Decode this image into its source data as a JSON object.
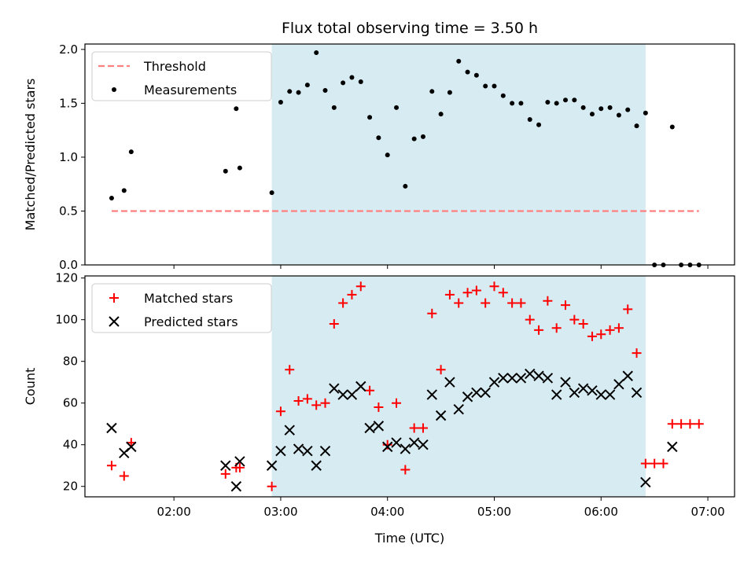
{
  "chart_data": {
    "title": "Flux total observing time = 3.50 h",
    "xlabel": "Time (UTC)",
    "x_unit": "hours UTC",
    "xlim": [
      "01:10",
      "07:15"
    ],
    "x_ticks": [
      "02:00",
      "03:00",
      "04:00",
      "05:00",
      "06:00",
      "07:00"
    ],
    "highlight_span": {
      "start": "02:55",
      "end": "06:25",
      "color": "#add8e6"
    },
    "panels": [
      {
        "type": "scatter",
        "ylabel": "Matched/Predicted stars",
        "ylim": [
          0,
          2.05
        ],
        "y_ticks": [
          "0.0",
          "0.5",
          "1.0",
          "1.5",
          "2.0"
        ],
        "legend_position": "upper-left",
        "series": [
          {
            "name": "Threshold",
            "type": "line",
            "style": "dashed",
            "color": "#ff7f7f",
            "x": [
              "01:25",
              "06:55"
            ],
            "y": [
              0.5,
              0.5
            ]
          },
          {
            "name": "Measurements",
            "type": "scatter",
            "marker": "dot",
            "color": "#000000",
            "x": [
              "01:25",
              "01:32",
              "01:36",
              "02:29",
              "02:35",
              "02:37",
              "02:55",
              "03:00",
              "03:05",
              "03:10",
              "03:15",
              "03:20",
              "03:25",
              "03:30",
              "03:35",
              "03:40",
              "03:45",
              "03:50",
              "03:55",
              "04:00",
              "04:05",
              "04:10",
              "04:15",
              "04:20",
              "04:25",
              "04:30",
              "04:35",
              "04:40",
              "04:45",
              "04:50",
              "04:55",
              "05:00",
              "05:05",
              "05:10",
              "05:15",
              "05:20",
              "05:25",
              "05:30",
              "05:35",
              "05:40",
              "05:45",
              "05:50",
              "05:55",
              "06:00",
              "06:05",
              "06:10",
              "06:15",
              "06:20",
              "06:25",
              "06:30",
              "06:35",
              "06:40",
              "06:45",
              "06:50",
              "06:55"
            ],
            "y": [
              0.62,
              0.69,
              1.05,
              0.87,
              1.45,
              0.9,
              0.67,
              1.51,
              1.61,
              1.6,
              1.67,
              1.97,
              1.62,
              1.46,
              1.69,
              1.74,
              1.7,
              1.37,
              1.18,
              1.02,
              1.46,
              0.73,
              1.17,
              1.19,
              1.61,
              1.4,
              1.6,
              1.89,
              1.79,
              1.76,
              1.66,
              1.66,
              1.57,
              1.5,
              1.5,
              1.35,
              1.3,
              1.51,
              1.5,
              1.53,
              1.53,
              1.46,
              1.4,
              1.45,
              1.46,
              1.39,
              1.44,
              1.29,
              1.41,
              0.0,
              0.0,
              1.28,
              0.0,
              0.0,
              0.0
            ]
          }
        ]
      },
      {
        "type": "scatter",
        "ylabel": "Count",
        "ylim": [
          15,
          121
        ],
        "y_ticks": [
          "20",
          "40",
          "60",
          "80",
          "100",
          "120"
        ],
        "legend_position": "upper-left",
        "series": [
          {
            "name": "Matched stars",
            "marker": "plus",
            "color": "#ff0000",
            "x": [
              "01:25",
              "01:32",
              "01:36",
              "02:29",
              "02:35",
              "02:37",
              "02:55",
              "03:00",
              "03:05",
              "03:10",
              "03:15",
              "03:20",
              "03:25",
              "03:30",
              "03:35",
              "03:40",
              "03:45",
              "03:50",
              "03:55",
              "04:00",
              "04:05",
              "04:10",
              "04:15",
              "04:20",
              "04:25",
              "04:30",
              "04:35",
              "04:40",
              "04:45",
              "04:50",
              "04:55",
              "05:00",
              "05:05",
              "05:10",
              "05:15",
              "05:20",
              "05:25",
              "05:30",
              "05:35",
              "05:40",
              "05:45",
              "05:50",
              "05:55",
              "06:00",
              "06:05",
              "06:10",
              "06:15",
              "06:20",
              "06:25",
              "06:30",
              "06:35",
              "06:40",
              "06:45",
              "06:50",
              "06:55"
            ],
            "y": [
              30,
              25,
              41,
              26,
              29,
              29,
              20,
              56,
              76,
              61,
              62,
              59,
              60,
              98,
              108,
              112,
              116,
              66,
              58,
              40,
              60,
              28,
              48,
              48,
              103,
              76,
              112,
              108,
              113,
              114,
              108,
              116,
              113,
              108,
              108,
              100,
              95,
              109,
              96,
              107,
              100,
              98,
              92,
              93,
              95,
              96,
              105,
              84,
              31,
              31,
              31,
              50,
              50,
              50,
              50
            ]
          },
          {
            "name": "Predicted stars",
            "marker": "x",
            "color": "#000000",
            "x": [
              "01:25",
              "01:32",
              "01:36",
              "02:29",
              "02:35",
              "02:37",
              "02:55",
              "03:00",
              "03:05",
              "03:10",
              "03:15",
              "03:20",
              "03:25",
              "03:30",
              "03:35",
              "03:40",
              "03:45",
              "03:50",
              "03:55",
              "04:00",
              "04:05",
              "04:10",
              "04:15",
              "04:20",
              "04:25",
              "04:30",
              "04:35",
              "04:40",
              "04:45",
              "04:50",
              "04:55",
              "05:00",
              "05:05",
              "05:10",
              "05:15",
              "05:20",
              "05:25",
              "05:30",
              "05:35",
              "05:40",
              "05:45",
              "05:50",
              "05:55",
              "06:00",
              "06:05",
              "06:10",
              "06:15",
              "06:20",
              "06:25",
              "06:40"
            ],
            "y": [
              48,
              36,
              39,
              30,
              20,
              32,
              30,
              37,
              47,
              38,
              37,
              30,
              37,
              67,
              64,
              64,
              68,
              48,
              49,
              39,
              41,
              38,
              41,
              40,
              64,
              54,
              70,
              57,
              63,
              65,
              65,
              70,
              72,
              72,
              72,
              74,
              73,
              72,
              64,
              70,
              65,
              67,
              66,
              64,
              64,
              69,
              73,
              65,
              22,
              39
            ]
          }
        ]
      }
    ]
  }
}
